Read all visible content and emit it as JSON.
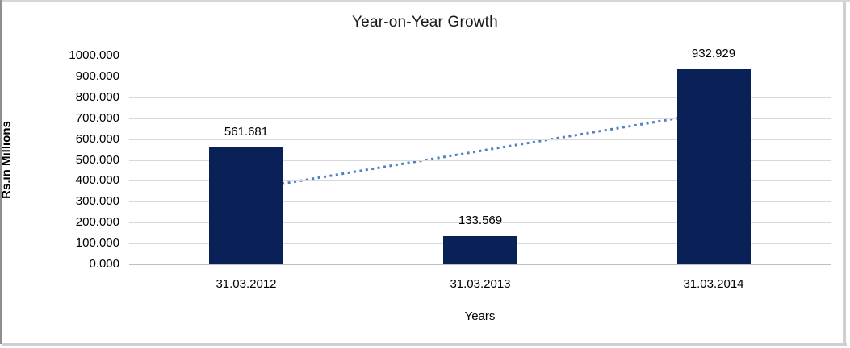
{
  "chart_data": {
    "type": "bar",
    "title": "Year-on-Year Growth",
    "xlabel": "Years",
    "ylabel": "Rs.in Millions",
    "categories": [
      "31.03.2012",
      "31.03.2013",
      "31.03.2014"
    ],
    "values": [
      561.681,
      133.569,
      932.929
    ],
    "value_labels": [
      "561.681",
      "133.569",
      "932.929"
    ],
    "ylim": [
      0,
      1000
    ],
    "yticks": [
      0,
      100,
      200,
      300,
      400,
      500,
      600,
      700,
      800,
      900,
      1000
    ],
    "ytick_labels": [
      "0.000",
      "100.000",
      "200.000",
      "300.000",
      "400.000",
      "500.000",
      "600.000",
      "700.000",
      "800.000",
      "900.000",
      "1000.000"
    ],
    "grid": true,
    "legend_position": "none",
    "bar_color": "#0a2158",
    "gridline_color": "#d9d9d9",
    "axis_line_color": "#bfbfbf",
    "trendline": {
      "type": "linear",
      "style": "dotted",
      "color": "#4f81bd",
      "fitted_values_at_category_centers": [
        357.102,
        542.726,
        728.35
      ]
    }
  }
}
